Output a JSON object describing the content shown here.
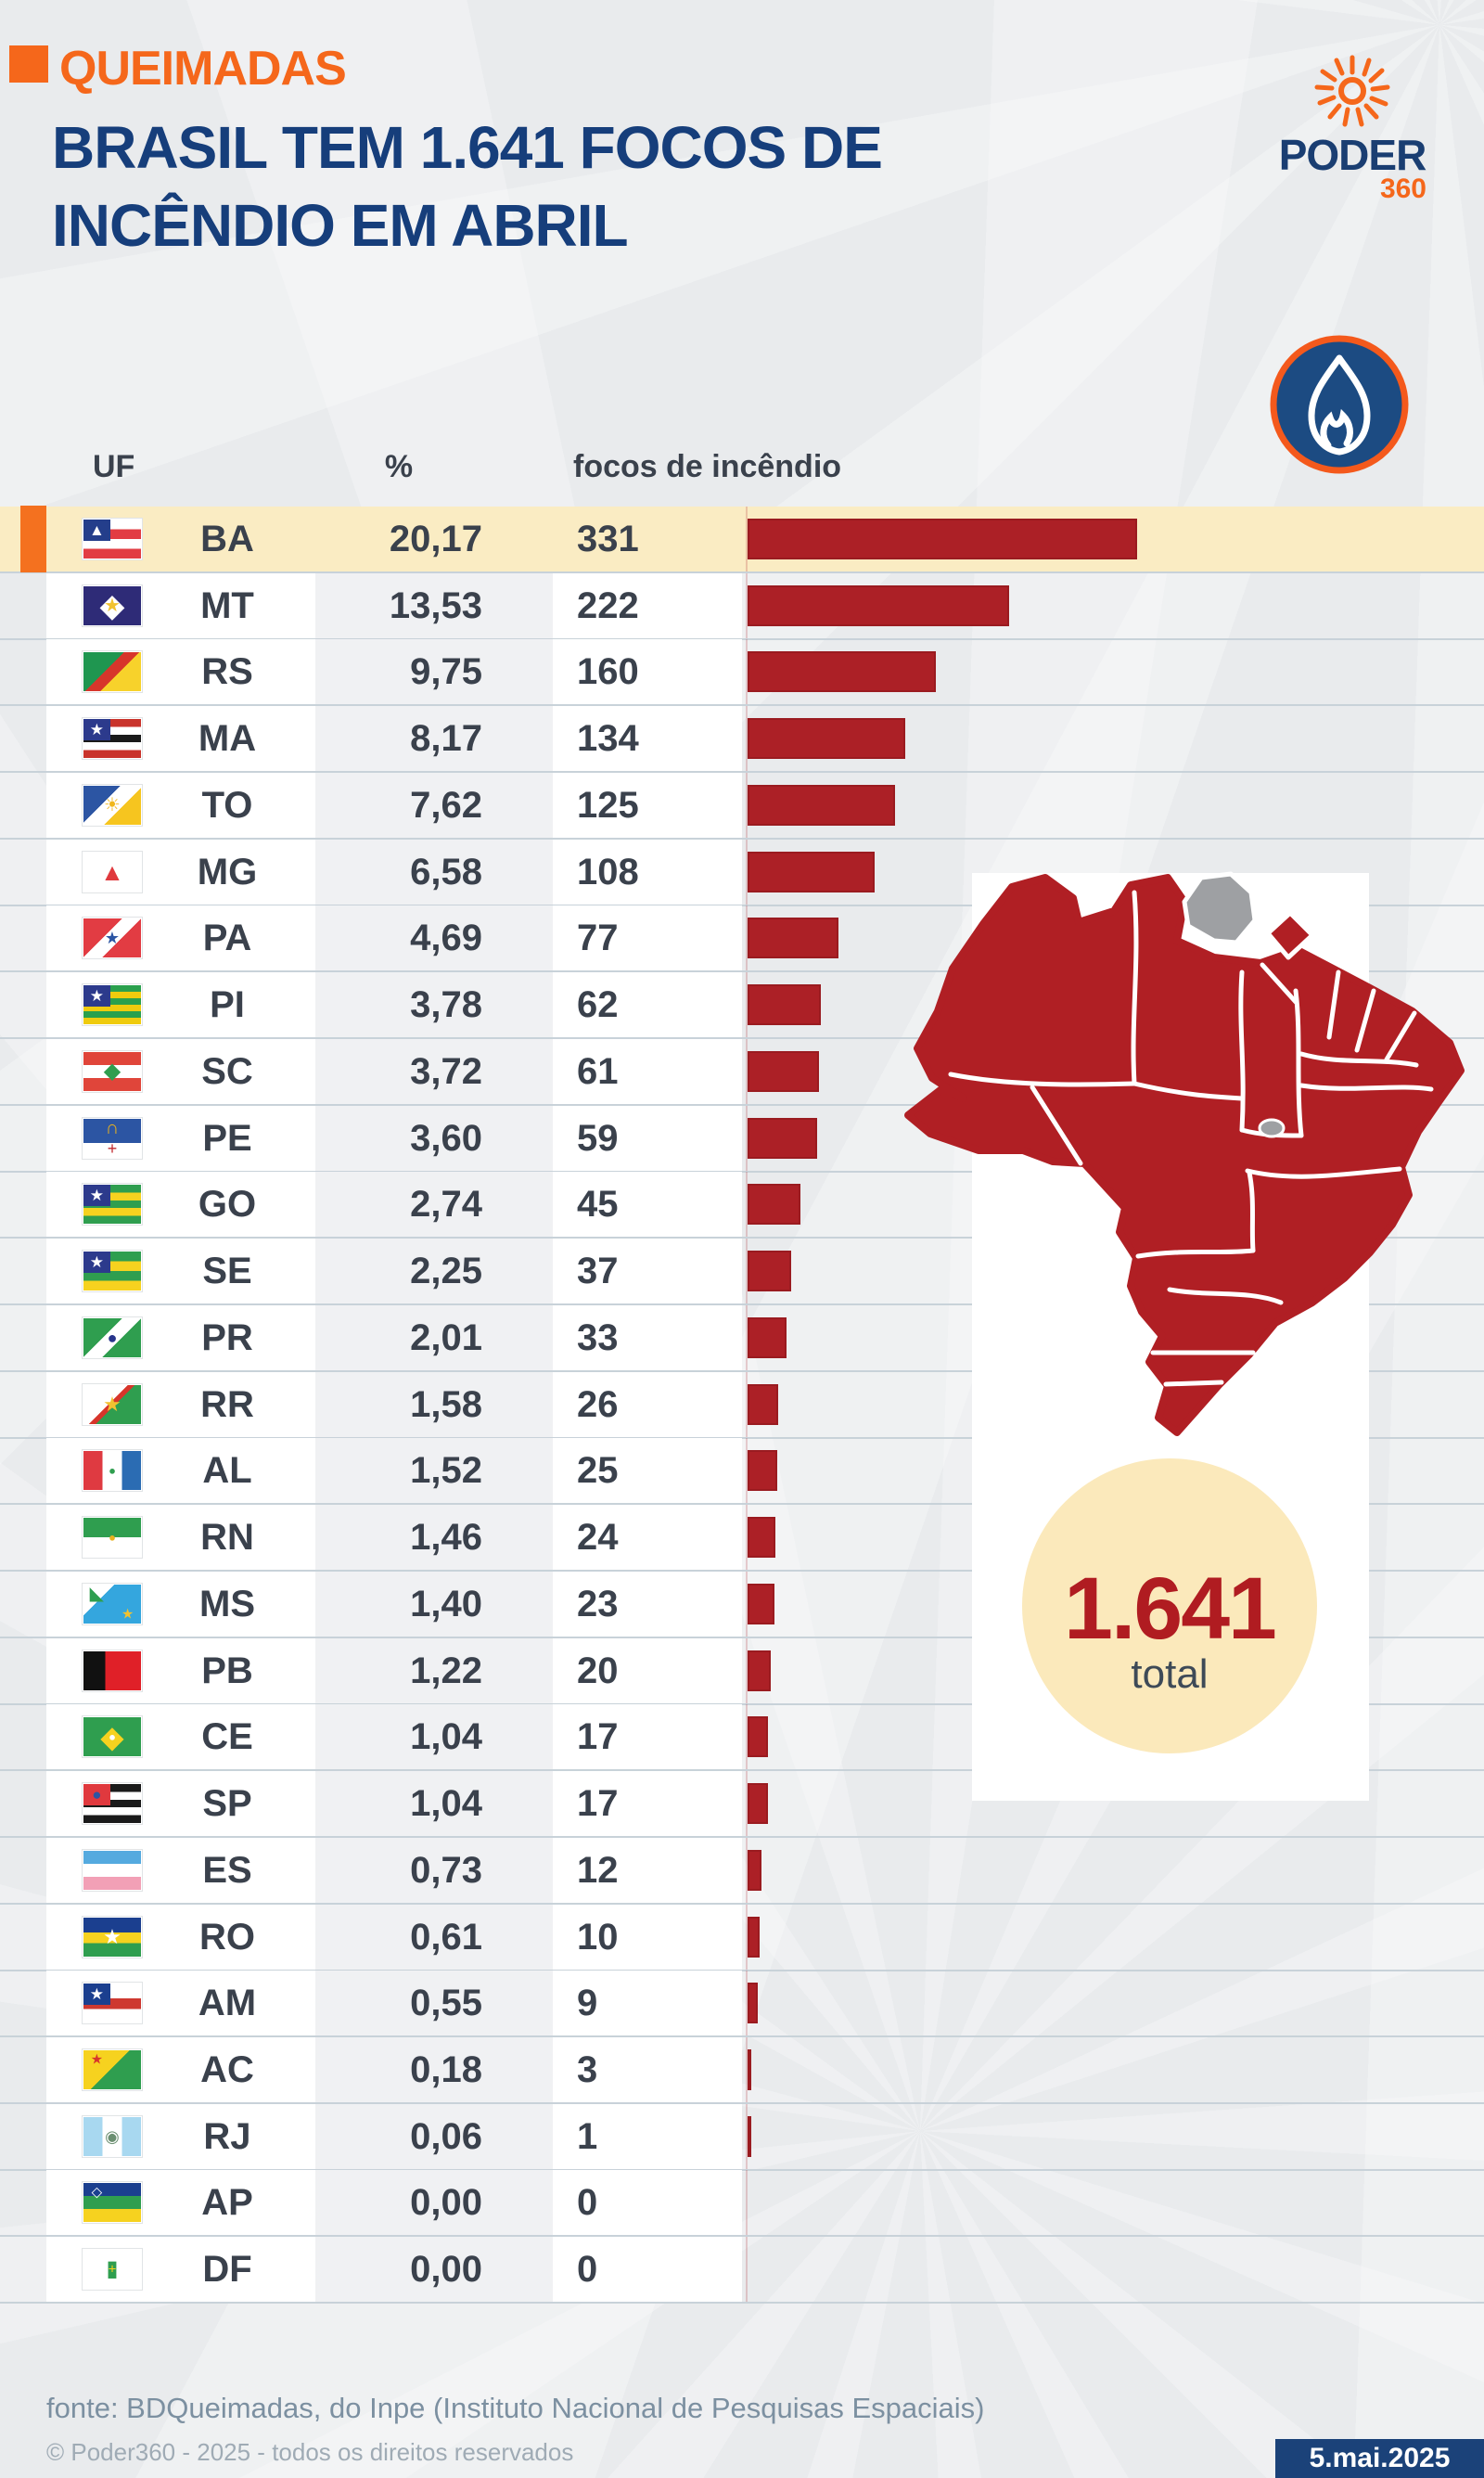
{
  "header": {
    "kicker": "QUEIMADAS",
    "title_line1": "BRASIL TEM 1.641 FOCOS DE",
    "title_line2": "INCÊNDIO EM ABRIL",
    "brand": {
      "name": "PODER",
      "suffix": "360"
    }
  },
  "table": {
    "col_uf": "UF",
    "col_pct": "%",
    "col_count": "focos de incêndio"
  },
  "badge": {
    "value": "1.641",
    "label": "total"
  },
  "footer": {
    "source": "fonte: BDQueimadas, do Inpe (Instituto Nacional de Pesquisas Espaciais)",
    "copyright": "© Poder360 - 2025 - todos os direitos reservados",
    "date": "5.mai.2025"
  },
  "colors": {
    "accent_orange": "#F5671B",
    "navy": "#163E7B",
    "bar_red": "#AC2026",
    "map_red": "#B01F24",
    "map_gray": "#9EA0A3",
    "highlight_yellow": "#FAECC3",
    "marker_orange": "#F4711F",
    "row_line": "#C8D2D9",
    "circle_bg": "#FBE9BB",
    "circle_red": "#B01C21",
    "date_bg": "#1B4279"
  },
  "chart_data": {
    "type": "bar",
    "orientation": "horizontal",
    "title": "BRASIL TEM 1.641 FOCOS DE INCÊNDIO EM ABRIL",
    "categories": [
      "BA",
      "MT",
      "RS",
      "MA",
      "TO",
      "MG",
      "PA",
      "PI",
      "SC",
      "PE",
      "GO",
      "SE",
      "PR",
      "RR",
      "AL",
      "RN",
      "MS",
      "PB",
      "CE",
      "SP",
      "ES",
      "RO",
      "AM",
      "AC",
      "RJ",
      "AP",
      "DF"
    ],
    "series": [
      {
        "name": "%",
        "values": [
          20.17,
          13.53,
          9.75,
          8.17,
          7.62,
          6.58,
          4.69,
          3.78,
          3.72,
          3.6,
          2.74,
          2.25,
          2.01,
          1.58,
          1.52,
          1.46,
          1.4,
          1.22,
          1.04,
          1.04,
          0.73,
          0.61,
          0.55,
          0.18,
          0.06,
          0.0,
          0.0
        ]
      },
      {
        "name": "focos de incêndio",
        "values": [
          331,
          222,
          160,
          134,
          125,
          108,
          77,
          62,
          61,
          59,
          45,
          37,
          33,
          26,
          25,
          24,
          23,
          20,
          17,
          17,
          12,
          10,
          9,
          3,
          1,
          0,
          0
        ]
      }
    ],
    "total": 1641,
    "highlighted": "BA",
    "bar_color": "#AC2026",
    "legend_position": "none",
    "grid": false
  },
  "rows": [
    {
      "uf": "BA",
      "pct": "20,17",
      "count": "331",
      "highlight": true,
      "flag": {
        "dir": "h",
        "colors": [
          "#FFFFFF",
          "#E23C43",
          "#FFFFFF",
          "#E23C43"
        ],
        "canton": {
          "bg": "#243E8B",
          "ch": "▲",
          "color": "#FFFFFF"
        }
      }
    },
    {
      "uf": "MT",
      "pct": "13,53",
      "count": "222",
      "flag": {
        "dir": "h",
        "colors": [
          "#2E2B77"
        ],
        "emblems": [
          {
            "ch": "◆",
            "color": "#FFFFFF",
            "pos": "c",
            "size": 0.8
          },
          {
            "ch": "★",
            "color": "#F2C230",
            "pos": "c",
            "size": 0.45
          }
        ]
      }
    },
    {
      "uf": "RS",
      "pct": "9,75",
      "count": "160",
      "flag": {
        "dir": "d",
        "colors": [
          "#1F9650",
          "#D7352B",
          "#F7D22B"
        ],
        "stops": [
          42,
          58
        ]
      }
    },
    {
      "uf": "MA",
      "pct": "8,17",
      "count": "134",
      "flag": {
        "dir": "h",
        "colors": [
          "#C9332B",
          "#FFFFFF",
          "#1A1A1A",
          "#FFFFFF",
          "#C9332B"
        ],
        "canton": {
          "bg": "#2C3A8C",
          "ch": "★",
          "color": "#FFFFFF"
        }
      }
    },
    {
      "uf": "TO",
      "pct": "7,62",
      "count": "125",
      "flag": {
        "dir": "d",
        "colors": [
          "#2C55A3",
          "#FFFFFF",
          "#F6C51F"
        ],
        "stops": [
          38,
          62
        ],
        "emblems": [
          {
            "ch": "☀",
            "color": "#F0B71C",
            "pos": "c",
            "size": 0.45
          }
        ]
      }
    },
    {
      "uf": "MG",
      "pct": "6,58",
      "count": "108",
      "flag": {
        "dir": "h",
        "colors": [
          "#FFFFFF"
        ],
        "emblems": [
          {
            "ch": "▲",
            "color": "#E0393E",
            "pos": "c",
            "size": 0.6
          }
        ]
      }
    },
    {
      "uf": "PA",
      "pct": "4,69",
      "count": "77",
      "flag": {
        "dir": "d",
        "colors": [
          "#E23C43",
          "#FFFFFF",
          "#E23C43"
        ],
        "stops": [
          40,
          60
        ],
        "emblems": [
          {
            "ch": "★",
            "color": "#2C55A3",
            "pos": "c",
            "size": 0.4
          }
        ]
      }
    },
    {
      "uf": "PI",
      "pct": "3,78",
      "count": "62",
      "flag": {
        "dir": "h",
        "colors": [
          "#2AA04D",
          "#EFCB0E",
          "#2AA04D",
          "#EFCB0E",
          "#2AA04D",
          "#EFCB0E"
        ],
        "canton": {
          "bg": "#2C3A8C",
          "ch": "★",
          "color": "#FFFFFF"
        }
      }
    },
    {
      "uf": "SC",
      "pct": "3,72",
      "count": "61",
      "flag": {
        "dir": "h",
        "colors": [
          "#E0453A",
          "#FFFFFF",
          "#E0453A"
        ],
        "emblems": [
          {
            "ch": "◆",
            "color": "#2F9E4F",
            "pos": "c",
            "size": 0.55
          }
        ]
      }
    },
    {
      "uf": "PE",
      "pct": "3,60",
      "count": "59",
      "flag": {
        "dir": "h",
        "colors": [
          "#2C55A3",
          "#FFFFFF"
        ],
        "stops": [
          62
        ],
        "emblems": [
          {
            "ch": "∩",
            "color": "#E8B11F",
            "pos": "t",
            "size": 0.45
          },
          {
            "ch": "+",
            "color": "#C0282D",
            "pos": "b",
            "size": 0.4
          }
        ]
      }
    },
    {
      "uf": "GO",
      "pct": "2,74",
      "count": "45",
      "flag": {
        "dir": "h",
        "colors": [
          "#2F9E4F",
          "#F6D21F",
          "#2F9E4F",
          "#F6D21F",
          "#2F9E4F"
        ],
        "canton": {
          "bg": "#2C3A8C",
          "ch": "★",
          "color": "#FFFFFF"
        }
      }
    },
    {
      "uf": "SE",
      "pct": "2,25",
      "count": "37",
      "flag": {
        "dir": "h",
        "colors": [
          "#2F9E4F",
          "#F6D21F",
          "#2F9E4F",
          "#F6D21F"
        ],
        "canton": {
          "bg": "#2C3A8C",
          "ch": "★",
          "color": "#FFFFFF"
        }
      }
    },
    {
      "uf": "PR",
      "pct": "2,01",
      "count": "33",
      "flag": {
        "dir": "d",
        "colors": [
          "#2F9E4F",
          "#FFFFFF",
          "#2F9E4F"
        ],
        "stops": [
          40,
          60
        ],
        "emblems": [
          {
            "ch": "●",
            "color": "#27348B",
            "pos": "c",
            "size": 0.4
          }
        ]
      }
    },
    {
      "uf": "RR",
      "pct": "1,58",
      "count": "26",
      "flag": {
        "dir": "d",
        "colors": [
          "#FFFFFF",
          "#D7352B",
          "#2F9E4F"
        ],
        "stops": [
          46,
          53
        ],
        "emblems": [
          {
            "ch": "★",
            "color": "#F2C230",
            "pos": "c",
            "size": 0.5
          }
        ]
      }
    },
    {
      "uf": "AL",
      "pct": "1,52",
      "count": "25",
      "flag": {
        "dir": "v",
        "colors": [
          "#DF3A41",
          "#FFFFFF",
          "#2B6CB3"
        ],
        "emblems": [
          {
            "ch": "●",
            "color": "#2F9E4F",
            "pos": "c",
            "size": 0.3
          }
        ]
      }
    },
    {
      "uf": "RN",
      "pct": "1,46",
      "count": "24",
      "flag": {
        "dir": "h",
        "colors": [
          "#2F9E4F",
          "#FFFFFF"
        ],
        "emblems": [
          {
            "ch": "●",
            "color": "#E8B11F",
            "pos": "c",
            "size": 0.3
          }
        ]
      }
    },
    {
      "uf": "MS",
      "pct": "1,40",
      "count": "23",
      "flag": {
        "dir": "d",
        "colors": [
          "#FFFFFF",
          "#34A6DE"
        ],
        "stops": [
          32
        ],
        "emblems": [
          {
            "ch": "◣",
            "color": "#2F9E4F",
            "pos": "tl",
            "size": 0.45
          },
          {
            "ch": "★",
            "color": "#F2C230",
            "pos": "br",
            "size": 0.35
          }
        ]
      }
    },
    {
      "uf": "PB",
      "pct": "1,22",
      "count": "20",
      "flag": {
        "dir": "v",
        "colors": [
          "#111111",
          "#E02028"
        ],
        "stops": [
          38
        ]
      }
    },
    {
      "uf": "CE",
      "pct": "1,04",
      "count": "17",
      "flag": {
        "dir": "h",
        "colors": [
          "#2F9E4F"
        ],
        "emblems": [
          {
            "ch": "◆",
            "color": "#F6D21F",
            "pos": "c",
            "size": 0.75
          },
          {
            "ch": "●",
            "color": "#FFFFFF",
            "pos": "c",
            "size": 0.3
          }
        ]
      }
    },
    {
      "uf": "SP",
      "pct": "1,04",
      "count": "17",
      "flag": {
        "dir": "h",
        "colors": [
          "#1A1A1A",
          "#FFFFFF",
          "#1A1A1A",
          "#FFFFFF",
          "#1A1A1A"
        ],
        "canton": {
          "bg": "#E0393E",
          "ch": "●",
          "color": "#2C55A3"
        }
      }
    },
    {
      "uf": "ES",
      "pct": "0,73",
      "count": "12",
      "flag": {
        "dir": "h",
        "colors": [
          "#55AADF",
          "#FFFFFF",
          "#F2A0B6"
        ]
      }
    },
    {
      "uf": "RO",
      "pct": "0,61",
      "count": "10",
      "flag": {
        "dir": "h",
        "colors": [
          "#1B3F8F",
          "#F6D21F",
          "#2F9E4F"
        ],
        "stops": [
          38,
          66
        ],
        "emblems": [
          {
            "ch": "★",
            "color": "#FFFFFF",
            "pos": "c",
            "size": 0.5
          }
        ]
      }
    },
    {
      "uf": "AM",
      "pct": "0,55",
      "count": "9",
      "flag": {
        "dir": "h",
        "colors": [
          "#FFFFFF",
          "#CE3830",
          "#FFFFFF"
        ],
        "stops": [
          38,
          66
        ],
        "canton": {
          "bg": "#1B3F8F",
          "ch": "★",
          "color": "#FFFFFF"
        }
      }
    },
    {
      "uf": "AC",
      "pct": "0,18",
      "count": "3",
      "flag": {
        "dir": "d",
        "colors": [
          "#F6D21F",
          "#2F9E4F"
        ],
        "stops": [
          48
        ],
        "emblems": [
          {
            "ch": "★",
            "color": "#D7352B",
            "pos": "tl",
            "size": 0.35
          }
        ]
      }
    },
    {
      "uf": "RJ",
      "pct": "0,06",
      "count": "1",
      "flag": {
        "dir": "v",
        "colors": [
          "#A8D8F0",
          "#FFFFFF",
          "#A8D8F0"
        ],
        "emblems": [
          {
            "ch": "◉",
            "color": "#6B8F71",
            "pos": "c",
            "size": 0.4
          }
        ]
      }
    },
    {
      "uf": "AP",
      "pct": "0,00",
      "count": "0",
      "flag": {
        "dir": "h",
        "colors": [
          "#1B3F8F",
          "#2F9E4F",
          "#F6D21F"
        ],
        "emblems": [
          {
            "ch": "◇",
            "color": "#FFFFFF",
            "pos": "tl",
            "size": 0.35
          }
        ]
      }
    },
    {
      "uf": "DF",
      "pct": "0,00",
      "count": "0",
      "flag": {
        "dir": "h",
        "colors": [
          "#FFFFFF"
        ],
        "emblems": [
          {
            "ch": "▮",
            "color": "#2F9E4F",
            "pos": "c",
            "size": 0.55
          },
          {
            "ch": "+",
            "color": "#F6D21F",
            "pos": "c",
            "size": 0.35
          }
        ]
      }
    }
  ]
}
